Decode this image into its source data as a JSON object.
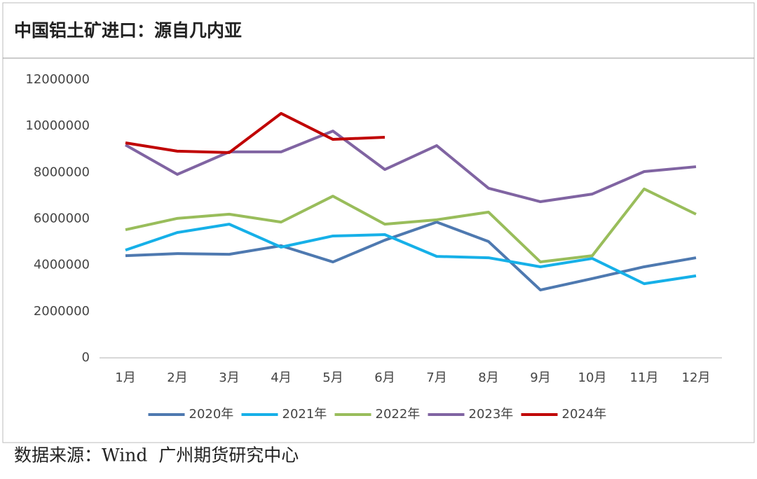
{
  "title": "中国铝土矿进口：源自几内亚",
  "source": "数据来源：Wind  广州期货研究中心",
  "chart_data": {
    "type": "line",
    "categories": [
      "1月",
      "2月",
      "3月",
      "4月",
      "5月",
      "6月",
      "7月",
      "8月",
      "9月",
      "10月",
      "11月",
      "12月"
    ],
    "ylim": [
      0,
      12000000
    ],
    "yticks": [
      0,
      2000000,
      4000000,
      6000000,
      8000000,
      10000000,
      12000000
    ],
    "grid": false,
    "legend": "bottom",
    "series": [
      {
        "name": "2020年",
        "color": "#4e79b0",
        "values": [
          4410000,
          4500000,
          4470000,
          4840000,
          4140000,
          5080000,
          5860000,
          5020000,
          2930000,
          3420000,
          3930000,
          4320000
        ]
      },
      {
        "name": "2021年",
        "color": "#16b0e8",
        "values": [
          4650000,
          5410000,
          5770000,
          4780000,
          5260000,
          5320000,
          4380000,
          4320000,
          3930000,
          4290000,
          3200000,
          3540000
        ]
      },
      {
        "name": "2022年",
        "color": "#99bd5b",
        "values": [
          5530000,
          6020000,
          6200000,
          5860000,
          6980000,
          5770000,
          5960000,
          6290000,
          4140000,
          4410000,
          7290000,
          6200000
        ]
      },
      {
        "name": "2023年",
        "color": "#8064a2",
        "values": [
          9190000,
          7920000,
          8890000,
          8890000,
          9790000,
          8130000,
          9160000,
          7320000,
          6740000,
          7070000,
          8040000,
          8250000
        ]
      },
      {
        "name": "2024年",
        "color": "#c00000",
        "values": [
          9280000,
          8920000,
          8860000,
          10550000,
          9430000,
          9520000,
          null,
          null,
          null,
          null,
          null,
          null
        ]
      }
    ]
  }
}
